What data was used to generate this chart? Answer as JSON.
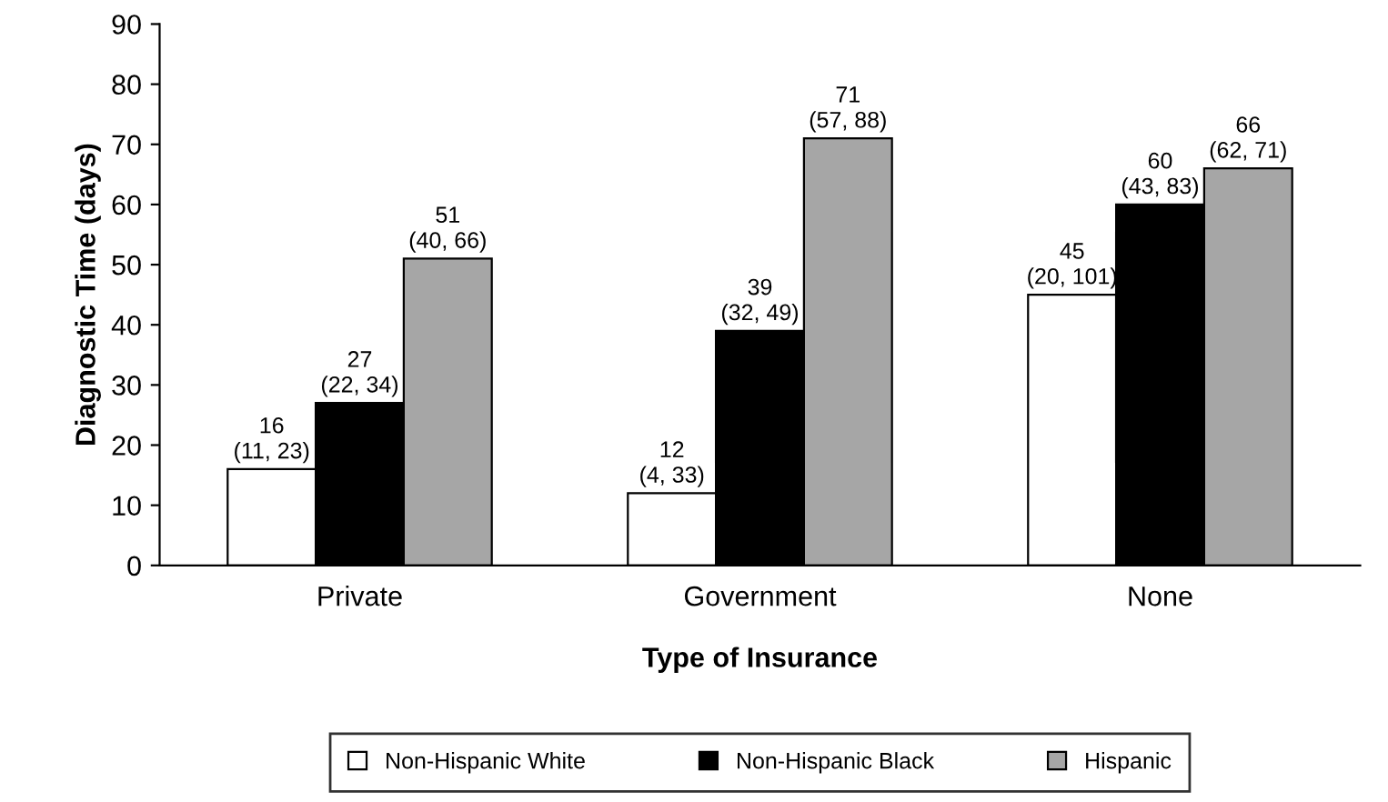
{
  "chart_data": {
    "type": "bar",
    "xlabel": "Type of Insurance",
    "ylabel": "Diagnostic Time (days)",
    "categories": [
      "Private",
      "Government",
      "None"
    ],
    "series": [
      {
        "name": "Non-Hispanic White",
        "color": "#ffffff",
        "values": [
          16,
          12,
          45
        ],
        "value_labels": [
          "16\n(11, 23)",
          "12\n(4, 33)",
          "45\n(20, 101)"
        ]
      },
      {
        "name": "Non-Hispanic Black",
        "color": "#000000",
        "values": [
          27,
          39,
          60
        ],
        "value_labels": [
          "27\n(22, 34)",
          "39\n(32, 49)",
          "60\n(43, 83)"
        ]
      },
      {
        "name": "Hispanic",
        "color": "#a6a6a6",
        "values": [
          51,
          71,
          66
        ],
        "value_labels": [
          "51\n(40, 66)",
          "71\n(57, 88)",
          "66\n(62, 71)"
        ]
      }
    ],
    "ylim": [
      0,
      90
    ],
    "yticks": [
      0,
      10,
      20,
      30,
      40,
      50,
      60,
      70,
      80,
      90
    ],
    "legend": "bottom",
    "grid": false
  }
}
